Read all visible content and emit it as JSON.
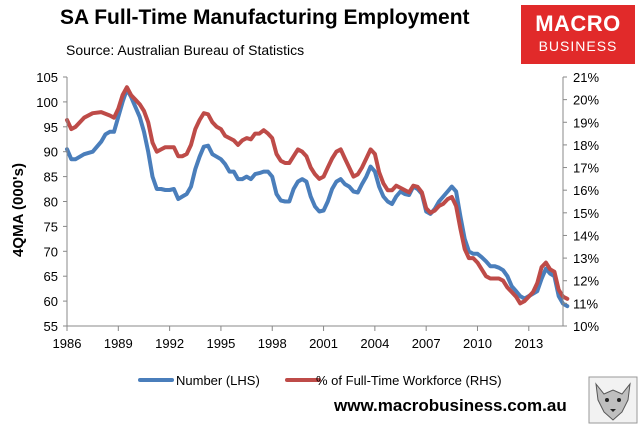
{
  "title": "SA Full-Time Manufacturing Employment",
  "subtitle": "Source: Australian Bureau of Statistics",
  "logo": {
    "line1": "MACRO",
    "line2": "BUSINESS"
  },
  "footer_url": "www.macrobusiness.com.au",
  "colors": {
    "blue": "#4a7ebb",
    "red": "#be4b48",
    "logo": "#e12a2a"
  },
  "chart_data": {
    "type": "line",
    "ylabel": "4QMA (000's)",
    "x_range": [
      1986,
      2015
    ],
    "x_ticks": [
      "1986",
      "1989",
      "1992",
      "1995",
      "1998",
      "2001",
      "2004",
      "2007",
      "2010",
      "2013"
    ],
    "ylim_left": [
      55,
      105
    ],
    "y_ticks_left": [
      "55",
      "60",
      "65",
      "70",
      "75",
      "80",
      "85",
      "90",
      "95",
      "100",
      "105"
    ],
    "ylim_right": [
      10,
      21
    ],
    "y_ticks_right": [
      "10%",
      "11%",
      "12%",
      "13%",
      "14%",
      "15%",
      "16%",
      "17%",
      "18%",
      "19%",
      "20%",
      "21%"
    ],
    "legend": "bottom",
    "series": [
      {
        "name": "Number (LHS)",
        "axis": "left",
        "color": "#4a7ebb",
        "points": [
          [
            1986,
            90.5
          ],
          [
            1986.25,
            88.5
          ],
          [
            1986.5,
            88.5
          ],
          [
            1987,
            89.5
          ],
          [
            1987.5,
            90
          ],
          [
            1988,
            92
          ],
          [
            1988.25,
            93.5
          ],
          [
            1988.5,
            94
          ],
          [
            1988.75,
            94
          ],
          [
            1989,
            97
          ],
          [
            1989.25,
            100
          ],
          [
            1989.5,
            102.5
          ],
          [
            1989.75,
            101
          ],
          [
            1990,
            99
          ],
          [
            1990.25,
            97
          ],
          [
            1990.5,
            94
          ],
          [
            1990.75,
            90
          ],
          [
            1991,
            85
          ],
          [
            1991.25,
            82.5
          ],
          [
            1991.5,
            82.5
          ],
          [
            1991.75,
            82.3
          ],
          [
            1992,
            82.3
          ],
          [
            1992.25,
            82.5
          ],
          [
            1992.5,
            80.5
          ],
          [
            1992.75,
            81
          ],
          [
            1993,
            81.5
          ],
          [
            1993.25,
            83
          ],
          [
            1993.5,
            86.5
          ],
          [
            1993.75,
            89
          ],
          [
            1994,
            91
          ],
          [
            1994.25,
            91.2
          ],
          [
            1994.5,
            89.5
          ],
          [
            1995,
            88.5
          ],
          [
            1995.25,
            87.5
          ],
          [
            1995.5,
            86
          ],
          [
            1995.75,
            86
          ],
          [
            1996,
            84.5
          ],
          [
            1996.25,
            84.5
          ],
          [
            1996.5,
            85
          ],
          [
            1996.75,
            84.5
          ],
          [
            1997,
            85.5
          ],
          [
            1997.25,
            85.7
          ],
          [
            1997.5,
            86
          ],
          [
            1997.75,
            86
          ],
          [
            1998,
            85
          ],
          [
            1998.25,
            81.5
          ],
          [
            1998.5,
            80.2
          ],
          [
            1998.75,
            80
          ],
          [
            1999,
            80
          ],
          [
            1999.25,
            82.5
          ],
          [
            1999.5,
            84
          ],
          [
            1999.75,
            84.5
          ],
          [
            2000,
            84
          ],
          [
            2000.25,
            81
          ],
          [
            2000.5,
            79
          ],
          [
            2000.75,
            78
          ],
          [
            2001,
            78.2
          ],
          [
            2001.25,
            80
          ],
          [
            2001.5,
            82.5
          ],
          [
            2001.75,
            84
          ],
          [
            2002,
            84.5
          ],
          [
            2002.25,
            83.5
          ],
          [
            2002.5,
            83
          ],
          [
            2002.75,
            82
          ],
          [
            2003,
            81.8
          ],
          [
            2003.25,
            83.5
          ],
          [
            2003.5,
            85
          ],
          [
            2003.75,
            87
          ],
          [
            2004,
            86
          ],
          [
            2004.25,
            83
          ],
          [
            2004.5,
            81
          ],
          [
            2004.75,
            80
          ],
          [
            2005,
            79.5
          ],
          [
            2005.25,
            81
          ],
          [
            2005.5,
            82
          ],
          [
            2005.75,
            81.5
          ],
          [
            2006,
            81.3
          ],
          [
            2006.25,
            83
          ],
          [
            2006.5,
            82.5
          ],
          [
            2006.75,
            81.5
          ],
          [
            2007,
            78
          ],
          [
            2007.25,
            77.5
          ],
          [
            2007.5,
            78.5
          ],
          [
            2007.75,
            80
          ],
          [
            2008,
            81
          ],
          [
            2008.25,
            82
          ],
          [
            2008.5,
            83
          ],
          [
            2008.75,
            82
          ],
          [
            2009,
            77
          ],
          [
            2009.25,
            72.5
          ],
          [
            2009.5,
            70
          ],
          [
            2009.75,
            69.5
          ],
          [
            2010,
            69.5
          ],
          [
            2010.25,
            68.8
          ],
          [
            2010.5,
            68
          ],
          [
            2010.75,
            67
          ],
          [
            2011,
            67
          ],
          [
            2011.25,
            66.7
          ],
          [
            2011.5,
            66.2
          ],
          [
            2011.75,
            65
          ],
          [
            2012,
            63
          ],
          [
            2012.25,
            62
          ],
          [
            2012.5,
            61
          ],
          [
            2012.75,
            60.5
          ],
          [
            2013,
            61
          ],
          [
            2013.25,
            61.5
          ],
          [
            2013.5,
            62
          ],
          [
            2013.75,
            64.5
          ],
          [
            2014,
            66.5
          ],
          [
            2014.25,
            65.5
          ],
          [
            2014.5,
            65
          ],
          [
            2014.75,
            61
          ],
          [
            2015,
            59.5
          ],
          [
            2015.25,
            59
          ]
        ]
      },
      {
        "name": "% of Full-Time Workforce (RHS)",
        "axis": "right",
        "color": "#be4b48",
        "points": [
          [
            1986,
            19.1
          ],
          [
            1986.25,
            18.7
          ],
          [
            1986.5,
            18.8
          ],
          [
            1987,
            19.2
          ],
          [
            1987.5,
            19.4
          ],
          [
            1988,
            19.45
          ],
          [
            1988.5,
            19.3
          ],
          [
            1988.75,
            19.2
          ],
          [
            1989,
            19.6
          ],
          [
            1989.25,
            20.2
          ],
          [
            1989.5,
            20.55
          ],
          [
            1989.75,
            20.2
          ],
          [
            1990,
            20.0
          ],
          [
            1990.25,
            19.8
          ],
          [
            1990.5,
            19.5
          ],
          [
            1990.75,
            19.0
          ],
          [
            1991,
            18.1
          ],
          [
            1991.25,
            17.7
          ],
          [
            1991.5,
            17.8
          ],
          [
            1991.75,
            17.9
          ],
          [
            1992,
            17.9
          ],
          [
            1992.25,
            17.9
          ],
          [
            1992.5,
            17.5
          ],
          [
            1992.75,
            17.5
          ],
          [
            1993,
            17.6
          ],
          [
            1993.25,
            18.0
          ],
          [
            1993.5,
            18.7
          ],
          [
            1993.75,
            19.1
          ],
          [
            1994,
            19.4
          ],
          [
            1994.25,
            19.35
          ],
          [
            1994.5,
            19.0
          ],
          [
            1994.75,
            18.8
          ],
          [
            1995,
            18.7
          ],
          [
            1995.25,
            18.4
          ],
          [
            1995.5,
            18.3
          ],
          [
            1995.75,
            18.2
          ],
          [
            1996,
            18.0
          ],
          [
            1996.25,
            18.2
          ],
          [
            1996.5,
            18.3
          ],
          [
            1996.75,
            18.25
          ],
          [
            1997,
            18.5
          ],
          [
            1997.25,
            18.5
          ],
          [
            1997.5,
            18.65
          ],
          [
            1997.75,
            18.5
          ],
          [
            1998,
            18.3
          ],
          [
            1998.25,
            17.6
          ],
          [
            1998.5,
            17.3
          ],
          [
            1998.75,
            17.2
          ],
          [
            1999,
            17.2
          ],
          [
            1999.25,
            17.5
          ],
          [
            1999.5,
            17.8
          ],
          [
            1999.75,
            17.7
          ],
          [
            2000,
            17.5
          ],
          [
            2000.25,
            17.0
          ],
          [
            2000.5,
            16.7
          ],
          [
            2000.75,
            16.5
          ],
          [
            2001,
            16.6
          ],
          [
            2001.25,
            17.0
          ],
          [
            2001.5,
            17.4
          ],
          [
            2001.75,
            17.7
          ],
          [
            2002,
            17.8
          ],
          [
            2002.25,
            17.4
          ],
          [
            2002.5,
            17.0
          ],
          [
            2002.75,
            16.6
          ],
          [
            2003,
            16.7
          ],
          [
            2003.25,
            17.0
          ],
          [
            2003.5,
            17.4
          ],
          [
            2003.75,
            17.8
          ],
          [
            2004,
            17.6
          ],
          [
            2004.25,
            16.8
          ],
          [
            2004.5,
            16.3
          ],
          [
            2004.75,
            16.0
          ],
          [
            2005,
            16.0
          ],
          [
            2005.25,
            16.2
          ],
          [
            2005.5,
            16.1
          ],
          [
            2005.75,
            16.0
          ],
          [
            2006,
            15.9
          ],
          [
            2006.25,
            16.2
          ],
          [
            2006.5,
            16.15
          ],
          [
            2006.75,
            15.9
          ],
          [
            2007,
            15.2
          ],
          [
            2007.25,
            15.0
          ],
          [
            2007.5,
            15.1
          ],
          [
            2007.75,
            15.3
          ],
          [
            2008,
            15.4
          ],
          [
            2008.25,
            15.6
          ],
          [
            2008.5,
            15.7
          ],
          [
            2008.75,
            15.3
          ],
          [
            2009,
            14.3
          ],
          [
            2009.25,
            13.4
          ],
          [
            2009.5,
            13.0
          ],
          [
            2009.75,
            13.0
          ],
          [
            2010,
            12.8
          ],
          [
            2010.25,
            12.5
          ],
          [
            2010.5,
            12.2
          ],
          [
            2010.75,
            12.1
          ],
          [
            2011,
            12.1
          ],
          [
            2011.25,
            12.1
          ],
          [
            2011.5,
            12.0
          ],
          [
            2011.75,
            11.7
          ],
          [
            2012,
            11.5
          ],
          [
            2012.25,
            11.3
          ],
          [
            2012.5,
            11.0
          ],
          [
            2012.75,
            11.1
          ],
          [
            2013,
            11.3
          ],
          [
            2013.25,
            11.5
          ],
          [
            2013.5,
            11.9
          ],
          [
            2013.75,
            12.6
          ],
          [
            2014,
            12.8
          ],
          [
            2014.25,
            12.5
          ],
          [
            2014.5,
            12.4
          ],
          [
            2014.75,
            11.6
          ],
          [
            2015,
            11.3
          ],
          [
            2015.25,
            11.2
          ]
        ]
      }
    ]
  }
}
